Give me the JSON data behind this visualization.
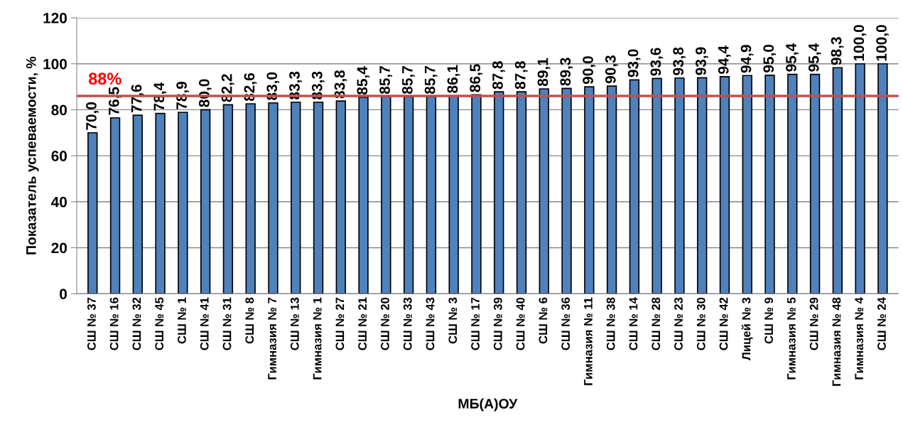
{
  "chart_data": {
    "type": "bar",
    "xlabel": "МБ(А)ОУ",
    "ylabel": "Показатель успеваемости, %",
    "categories": [
      "СШ № 37",
      "СШ № 16",
      "СШ № 32",
      "СШ № 45",
      "СШ № 1",
      "СШ № 41",
      "СШ № 31",
      "СШ № 8",
      "Гимназия № 7",
      "СШ № 13",
      "Гимназия № 1",
      "СШ № 27",
      "СШ № 21",
      "СШ № 20",
      "СШ № 33",
      "СШ № 43",
      "СШ № 3",
      "СШ № 17",
      "СШ № 39",
      "СШ № 40",
      "СШ № 6",
      "СШ № 36",
      "Гимназия № 11",
      "СШ № 38",
      "СШ № 14",
      "СШ № 28",
      "СШ № 23",
      "СШ № 30",
      "СШ № 42",
      "Лицей № 3",
      "СШ № 9",
      "Гимназия № 5",
      "СШ № 29",
      "Гимназия № 48",
      "Гимназия № 4",
      "СШ № 24"
    ],
    "values": [
      70.0,
      76.5,
      77.6,
      78.4,
      78.9,
      80.0,
      82.2,
      82.6,
      83.0,
      83.3,
      83.3,
      83.8,
      85.4,
      85.7,
      85.7,
      85.7,
      86.1,
      86.5,
      87.8,
      87.8,
      89.1,
      89.3,
      90.0,
      90.3,
      93.0,
      93.6,
      93.8,
      93.9,
      94.4,
      94.9,
      95.0,
      95.4,
      95.4,
      98.3,
      100.0,
      100.0
    ],
    "value_labels": [
      "70,0",
      "76,5",
      "77,6",
      "78,4",
      "78,9",
      "80,0",
      "82,2",
      "82,6",
      "83,0",
      "83,3",
      "83,3",
      "83,8",
      "85,4",
      "85,7",
      "85,7",
      "85,7",
      "86,1",
      "86,5",
      "87,8",
      "87,8",
      "89,1",
      "89,3",
      "90,0",
      "90,3",
      "93,0",
      "93,6",
      "93,8",
      "93,9",
      "94,4",
      "94,9",
      "95,0",
      "95,4",
      "95,4",
      "98,3",
      "100,0",
      "100,0"
    ],
    "color": "#4f81bd",
    "ylim": [
      0,
      120
    ],
    "yticks": [
      0,
      20,
      40,
      60,
      80,
      100,
      120
    ],
    "grid": "y",
    "ref_lines": [
      {
        "axis": "y",
        "value": 86,
        "color": "#c0504d"
      }
    ],
    "annotations": [
      "88%"
    ]
  }
}
